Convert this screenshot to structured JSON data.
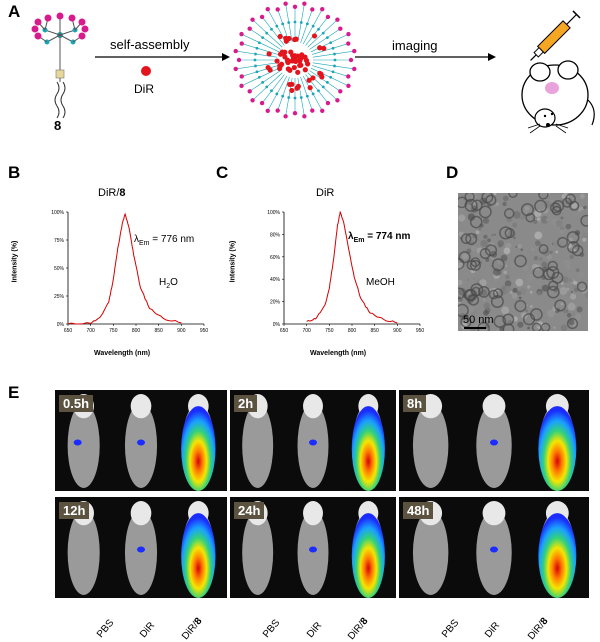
{
  "panels": {
    "a": "A",
    "b": "B",
    "c": "C",
    "d": "D",
    "e": "E"
  },
  "scheme": {
    "compound_label": "8",
    "arrow1_label": "self-assembly",
    "dye_label": "DiR",
    "arrow2_label": "imaging"
  },
  "spectrum_b": {
    "title_prefix": "DiR/",
    "title_bold": "8",
    "lambda_prefix": "λ",
    "lambda_sub": "Em",
    "lambda_value": "= 776 nm",
    "solvent_main": "H",
    "solvent_sub": "2",
    "solvent_tail": "O",
    "xlabel": "Wavelength (nm)",
    "ylabel": "Intensity (%)"
  },
  "spectrum_c": {
    "title": "DiR",
    "lambda_prefix": "λ",
    "lambda_sub": "Em",
    "lambda_value": "= 774 nm",
    "solvent": "MeOH",
    "xlabel": "Wavelength (nm)",
    "ylabel": "Intensity (%)"
  },
  "tem": {
    "scale_bar": "50  nm"
  },
  "timepoints": [
    "0.5h",
    "2h",
    "8h",
    "12h",
    "24h",
    "48h"
  ],
  "mouse_labels": {
    "pbs": "PBS",
    "dir": "DiR",
    "dir8_prefix": "DiR/",
    "dir8_bold": "8"
  },
  "chart_data": [
    {
      "type": "line",
      "panel": "B",
      "x": [
        650,
        700,
        720,
        740,
        750,
        760,
        770,
        776,
        785,
        795,
        810,
        830,
        860,
        900
      ],
      "series": [
        {
          "values": [
            0,
            1,
            5,
            20,
            40,
            68,
            90,
            98,
            85,
            62,
            32,
            14,
            5,
            1
          ]
        }
      ],
      "xlabel": "Wavelength (nm)",
      "ylabel": "Intensity (%)",
      "xlim": [
        650,
        950
      ],
      "ylim": [
        0,
        100
      ],
      "x_ticks": [
        "650",
        "700",
        "750",
        "800",
        "850",
        "900",
        "950"
      ],
      "y_ticks": [
        "0%",
        "25%",
        "50%",
        "75%",
        "100%"
      ],
      "color": "#d40000"
    },
    {
      "type": "line",
      "panel": "C",
      "x": [
        700,
        720,
        740,
        750,
        760,
        768,
        774,
        782,
        792,
        805,
        820,
        840,
        870,
        900
      ],
      "series": [
        {
          "values": [
            2,
            5,
            16,
            32,
            60,
            88,
            100,
            90,
            68,
            42,
            22,
            10,
            4,
            1
          ]
        }
      ],
      "xlabel": "Wavelength (nm)",
      "ylabel": "Intensity (%)",
      "xlim": [
        650,
        950
      ],
      "ylim": [
        0,
        100
      ],
      "x_ticks": [
        "650",
        "700",
        "750",
        "800",
        "850",
        "900",
        "950"
      ],
      "y_ticks": [
        "0%",
        "20%",
        "40%",
        "60%",
        "80%",
        "100%"
      ],
      "color": "#d40000"
    }
  ]
}
